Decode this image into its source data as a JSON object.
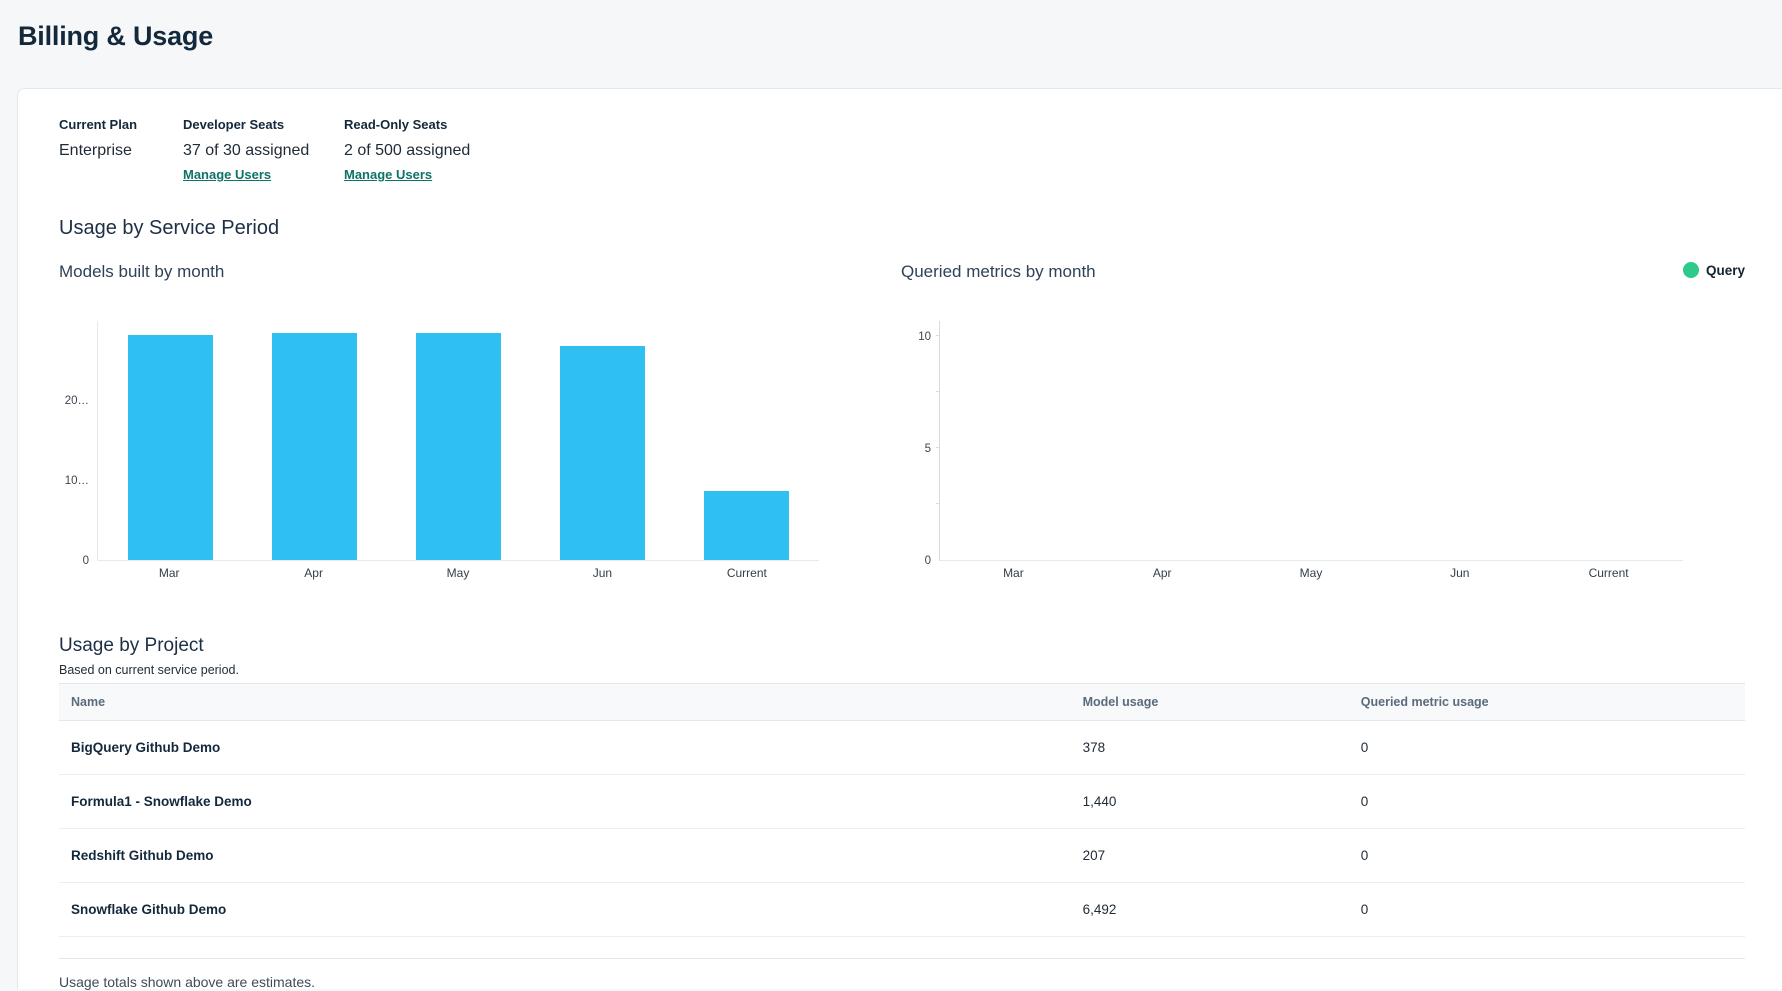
{
  "page": {
    "title": "Billing & Usage"
  },
  "plan_summary": {
    "columns": [
      {
        "label": "Current Plan",
        "value": "Enterprise"
      },
      {
        "label": "Developer Seats",
        "value": "37 of 30 assigned",
        "link": "Manage Users"
      },
      {
        "label": "Read-Only Seats",
        "value": "2 of 500 assigned",
        "link": "Manage Users"
      }
    ]
  },
  "usage_section": {
    "title": "Usage by Service Period",
    "legend": {
      "label": "Query",
      "color": "#2DCA8C"
    }
  },
  "chart_data": [
    {
      "type": "bar",
      "title": "Models built by month",
      "categories": [
        "Mar",
        "Apr",
        "May",
        "Jun",
        "Current"
      ],
      "values": [
        28100,
        28400,
        28400,
        26800,
        8600
      ],
      "xlabel": "",
      "ylabel": "",
      "ylim": [
        0,
        30000
      ],
      "yticks": [
        {
          "value": 0,
          "label": "0"
        },
        {
          "value": 10000,
          "label": "10…"
        },
        {
          "value": 20000,
          "label": "20…"
        }
      ],
      "tick_marks": [],
      "bar_color": "#2FBFF1",
      "grid": false,
      "legend_position": "none"
    },
    {
      "type": "bar",
      "title": "Queried metrics by month",
      "categories": [
        "Mar",
        "Apr",
        "May",
        "Jun",
        "Current"
      ],
      "series": [
        {
          "name": "Query",
          "values": [
            0,
            0,
            0,
            0,
            0
          ]
        }
      ],
      "xlabel": "",
      "ylabel": "",
      "ylim": [
        0,
        10.7
      ],
      "yticks": [
        {
          "value": 0,
          "label": "0"
        },
        {
          "value": 5,
          "label": "5"
        },
        {
          "value": 10,
          "label": "10"
        }
      ],
      "tick_marks": [
        2.5,
        5,
        7.5,
        10
      ],
      "bar_color": "#2DCA8C",
      "grid": false,
      "legend_position": "top-right"
    }
  ],
  "project_section": {
    "title": "Usage by Project",
    "subtitle": "Based on current service period.",
    "table": {
      "columns": [
        "Name",
        "Model usage",
        "Queried metric usage"
      ],
      "rows": [
        {
          "name": "BigQuery Github Demo",
          "model_usage": "378",
          "queried_metric_usage": "0"
        },
        {
          "name": "Formula1 - Snowflake Demo",
          "model_usage": "1,440",
          "queried_metric_usage": "0"
        },
        {
          "name": "Redshift Github Demo",
          "model_usage": "207",
          "queried_metric_usage": "0"
        },
        {
          "name": "Snowflake Github Demo",
          "model_usage": "6,492",
          "queried_metric_usage": "0"
        }
      ]
    },
    "footer_note": "Usage totals shown above are estimates."
  },
  "colors": {
    "bar_blue": "#2FBFF1",
    "legend_green": "#2DCA8C",
    "link_teal": "#0E7366",
    "heading_navy": "#14283C",
    "page_background": "#F6F7F9"
  }
}
